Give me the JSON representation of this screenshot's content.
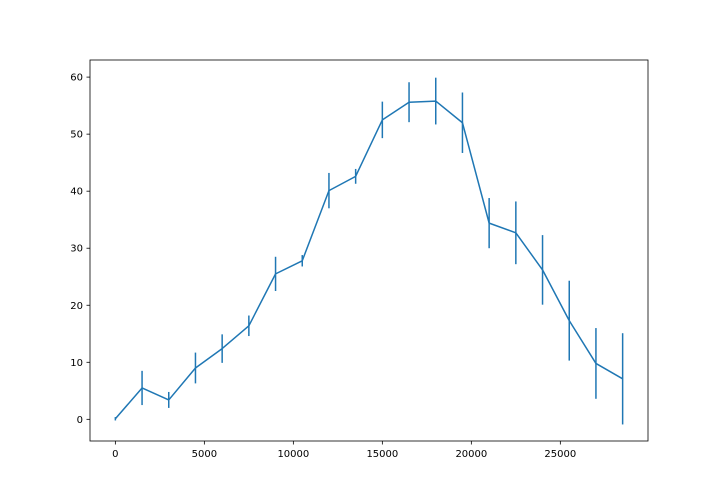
{
  "chart_data": {
    "type": "line",
    "title": "",
    "xlabel": "",
    "ylabel": "",
    "xlim": [
      -1425,
      29925
    ],
    "ylim": [
      -3.8,
      63.0
    ],
    "grid": false,
    "legend": "none",
    "x_ticks": [
      0,
      5000,
      10000,
      15000,
      20000,
      25000
    ],
    "y_ticks": [
      0,
      10,
      20,
      30,
      40,
      50,
      60
    ],
    "series": [
      {
        "color": "#1f77b4",
        "x": [
          0,
          1500,
          3000,
          4500,
          6000,
          7500,
          9000,
          10500,
          12000,
          13500,
          15000,
          16500,
          18000,
          19500,
          21000,
          22500,
          24000,
          25500,
          27000,
          28500
        ],
        "y": [
          0.1,
          5.5,
          3.4,
          9.0,
          12.4,
          16.4,
          25.5,
          27.8,
          40.1,
          42.6,
          52.5,
          55.6,
          55.8,
          52.0,
          34.4,
          32.7,
          26.2,
          17.3,
          9.8,
          7.1
        ],
        "yerr": [
          0.3,
          3.0,
          1.4,
          2.7,
          2.5,
          1.8,
          3.0,
          1.0,
          3.1,
          1.3,
          3.2,
          3.5,
          4.1,
          5.3,
          4.4,
          5.5,
          6.1,
          7.0,
          6.2,
          8.0
        ]
      }
    ]
  }
}
